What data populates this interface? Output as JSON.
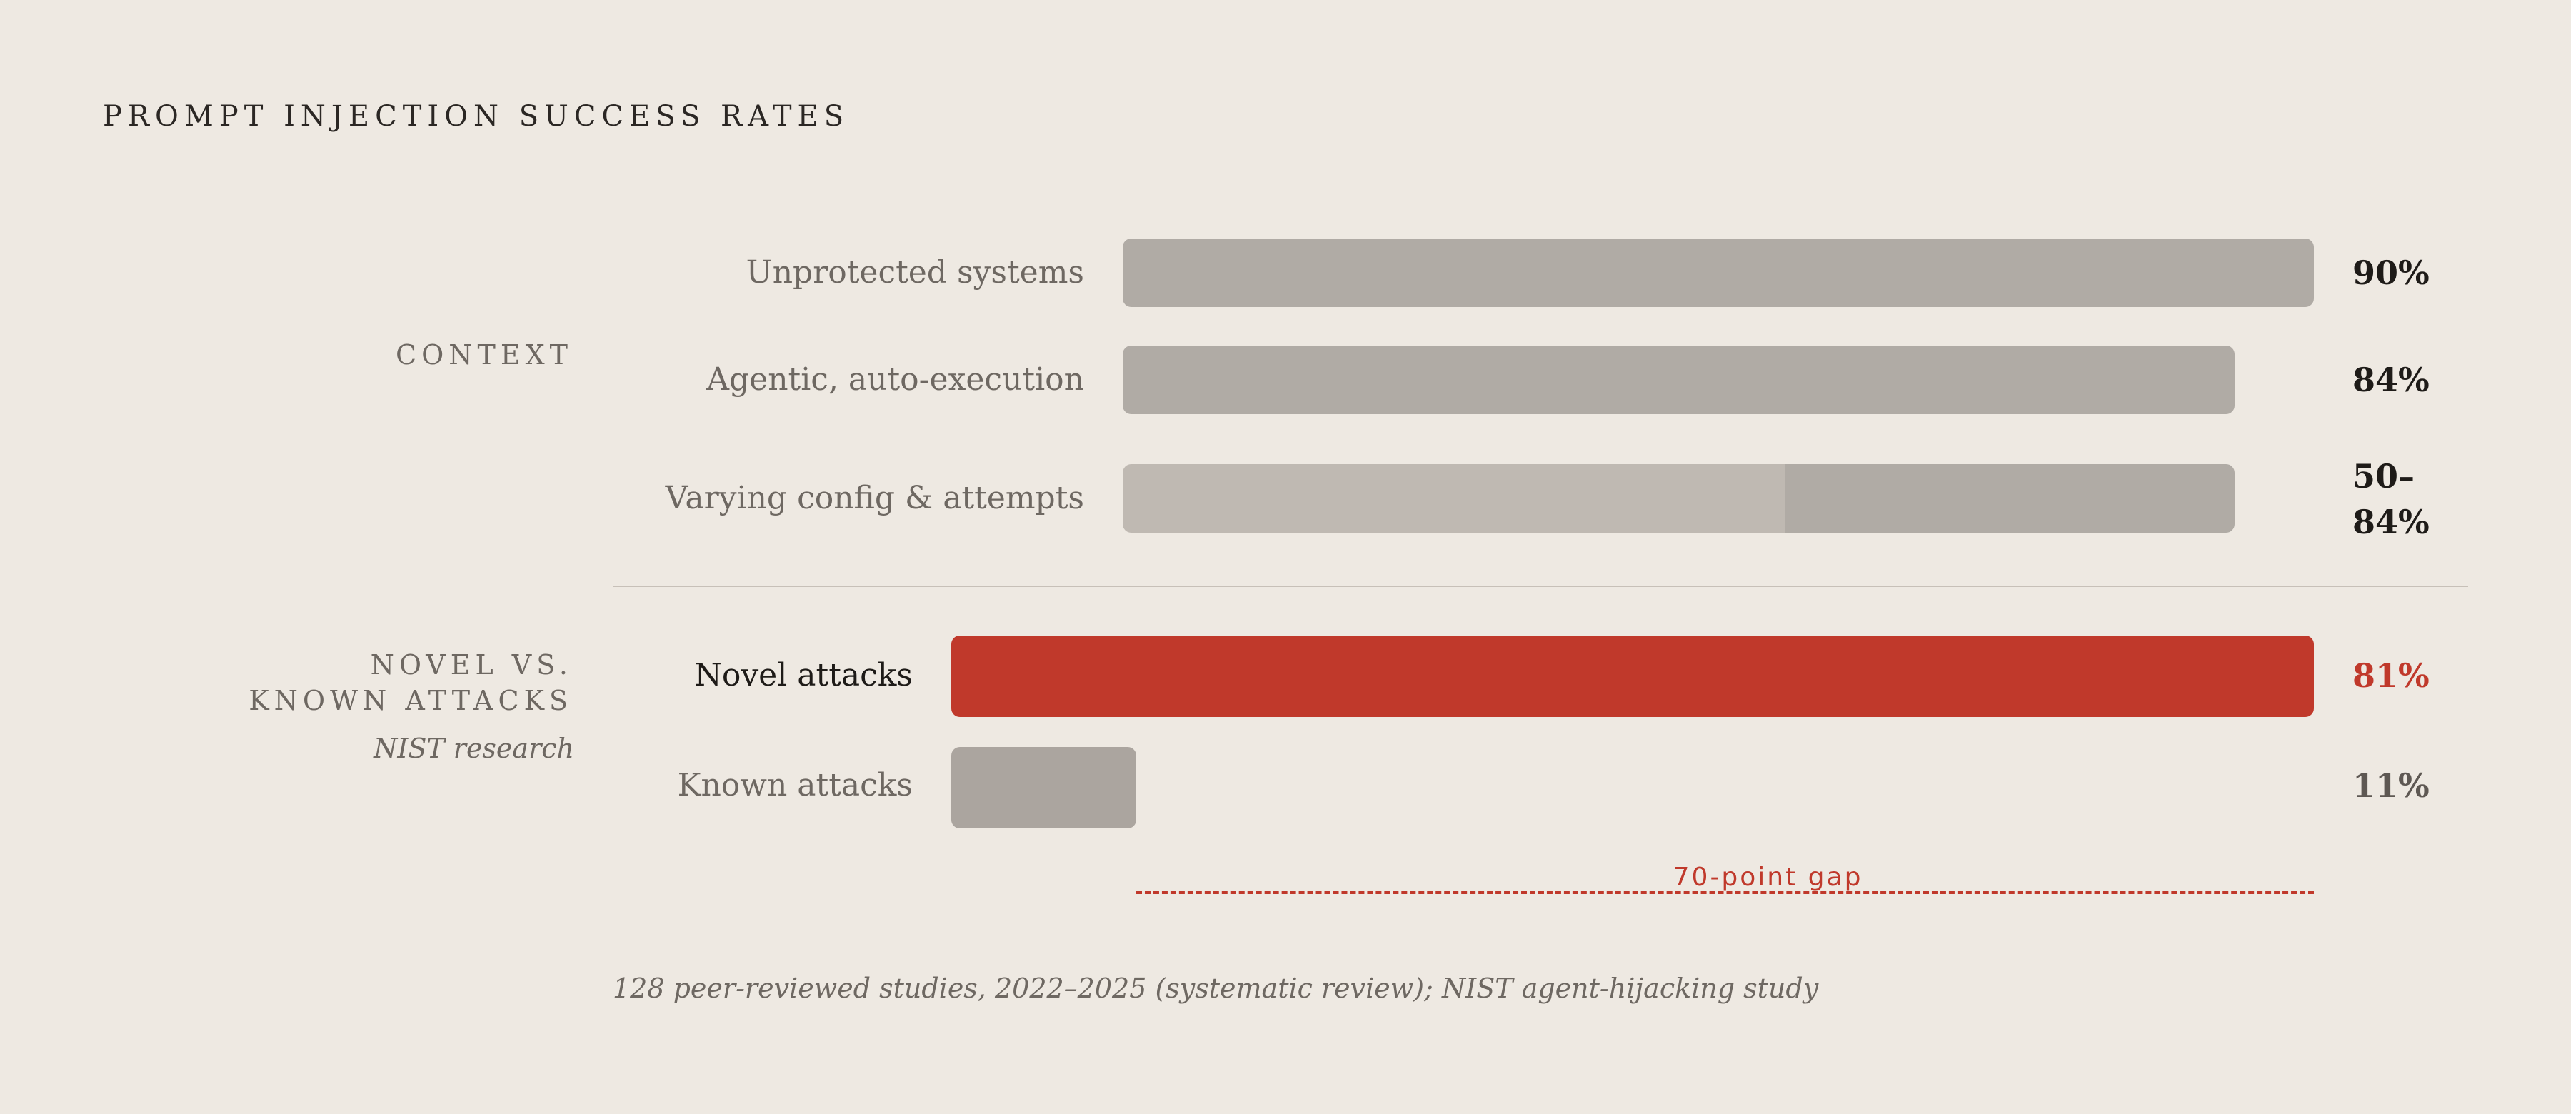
{
  "chart_data": {
    "type": "bar",
    "title": "PROMPT INJECTION SUCCESS RATES",
    "groups": [
      {
        "label_lines": [
          "CONTEXT"
        ],
        "subtitle": "",
        "rows": [
          {
            "label": "Unprotected systems",
            "value": 90,
            "value_label": "90%"
          },
          {
            "label": "Agentic, auto-execution",
            "value": 84,
            "value_label": "84%"
          },
          {
            "label": "Varying config & attempts",
            "range": [
              50,
              84
            ],
            "value_label_lines": [
              "50–",
              "84%"
            ]
          }
        ]
      },
      {
        "label_lines": [
          "NOVEL VS.",
          "KNOWN ATTACKS"
        ],
        "subtitle": "NIST research",
        "rows": [
          {
            "label": "Novel attacks",
            "value": 81,
            "value_label": "81%",
            "highlight": true
          },
          {
            "label": "Known attacks",
            "value": 11,
            "value_label": "11%"
          }
        ]
      }
    ],
    "annotation": "70-point gap",
    "source": "128 peer-reviewed studies, 2022–2025 (systematic review); NIST agent-hijacking study"
  },
  "colors": {
    "background": "#eee9e2",
    "bar_neutral": "#b0aba5",
    "bar_range_light": "#bfb9b2",
    "bar_known": "#aba59f",
    "bar_highlight": "#c0392b",
    "highlight_text": "#c0392b",
    "muted_value": "#5e5853"
  }
}
